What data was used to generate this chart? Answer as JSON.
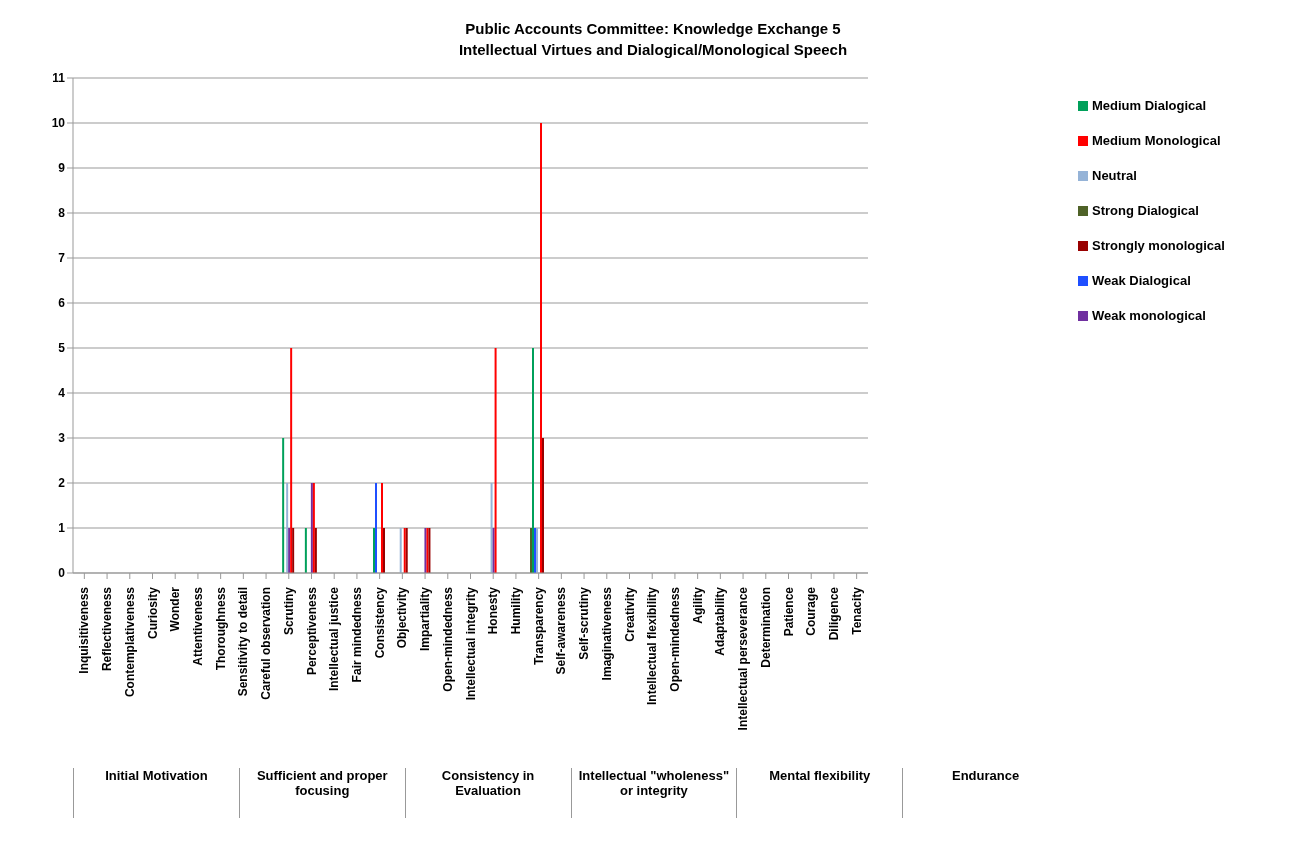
{
  "chart_data": {
    "type": "bar",
    "title": "Public Accounts Committee: Knowledge Exchange 5",
    "subtitle": "Intellectual Virtues and Dialogical/Monological Speech",
    "categories": [
      "Inquisitiveness",
      "Reflectiveness",
      "Contemplativeness",
      "Curiosity",
      "Wonder",
      "Attentiveness",
      "Thoroughness",
      "Sensitivity to detail",
      "Careful observation",
      "Scrutiny",
      "Perceptiveness",
      "Intellectual justice",
      "Fair mindedness",
      "Consistency",
      "Objectivity",
      "Impartiality",
      "Open-mindedness",
      "Intellectual integrity",
      "Honesty",
      "Humility",
      "Transparency",
      "Self-awareness",
      "Self-scrutiny",
      "Imaginativeness",
      "Creativity",
      "Intellectual flexibility",
      "Open-mindedness",
      "Agility",
      "Adaptability",
      "Intellectual perseverance",
      "Determination",
      "Patience",
      "Courage",
      "Diligence",
      "Tenacity"
    ],
    "series": [
      {
        "name": "Strong Dialogical",
        "color": "#4f6228",
        "values": [
          null,
          null,
          null,
          null,
          null,
          null,
          null,
          null,
          null,
          null,
          null,
          null,
          null,
          null,
          null,
          null,
          null,
          null,
          null,
          null,
          1,
          null,
          null,
          null,
          null,
          null,
          null,
          null,
          null,
          null,
          null,
          null,
          null,
          null,
          null
        ]
      },
      {
        "name": "Medium Dialogical",
        "color": "#00a05a",
        "values": [
          null,
          null,
          null,
          null,
          null,
          null,
          null,
          null,
          null,
          3,
          1,
          null,
          null,
          1,
          null,
          null,
          null,
          null,
          null,
          null,
          5,
          null,
          null,
          null,
          null,
          null,
          null,
          null,
          null,
          null,
          null,
          null,
          null,
          null,
          null
        ]
      },
      {
        "name": "Weak Dialogical",
        "color": "#1f4fff",
        "values": [
          null,
          null,
          null,
          null,
          null,
          null,
          null,
          null,
          null,
          null,
          null,
          null,
          null,
          2,
          null,
          null,
          null,
          null,
          null,
          null,
          1,
          null,
          null,
          null,
          null,
          null,
          null,
          null,
          null,
          null,
          null,
          null,
          null,
          null,
          null
        ]
      },
      {
        "name": "Neutral",
        "color": "#95b3d7",
        "values": [
          null,
          null,
          null,
          null,
          null,
          null,
          null,
          null,
          null,
          2,
          null,
          null,
          null,
          null,
          1,
          null,
          null,
          null,
          2,
          null,
          1,
          null,
          null,
          null,
          null,
          null,
          null,
          null,
          null,
          null,
          null,
          null,
          null,
          null,
          null
        ]
      },
      {
        "name": "Weak monological",
        "color": "#7030a0",
        "values": [
          null,
          null,
          null,
          null,
          null,
          null,
          null,
          null,
          null,
          1,
          2,
          null,
          null,
          null,
          null,
          1,
          null,
          null,
          1,
          null,
          null,
          null,
          null,
          null,
          null,
          null,
          null,
          null,
          null,
          null,
          null,
          null,
          null,
          null,
          null
        ]
      },
      {
        "name": "Medium Monological",
        "color": "#ff0000",
        "values": [
          null,
          null,
          null,
          null,
          null,
          null,
          null,
          null,
          null,
          5,
          2,
          null,
          null,
          2,
          1,
          1,
          null,
          null,
          5,
          null,
          10,
          null,
          null,
          null,
          null,
          null,
          null,
          null,
          null,
          null,
          null,
          null,
          null,
          null,
          null
        ]
      },
      {
        "name": "Strongly monological",
        "color": "#990000",
        "values": [
          null,
          null,
          null,
          null,
          null,
          null,
          null,
          null,
          null,
          1,
          1,
          null,
          null,
          1,
          1,
          1,
          null,
          null,
          null,
          null,
          3,
          null,
          null,
          null,
          null,
          null,
          null,
          null,
          null,
          null,
          null,
          null,
          null,
          null,
          null
        ]
      }
    ],
    "annotations": [
      "Initial Motivation",
      "Sufficient and proper focusing",
      "Consistency in Evaluation",
      "Intellectual \"wholeness\" or integrity",
      "Mental flexibility",
      "Endurance"
    ],
    "ylim": [
      0,
      11
    ],
    "yticks": [
      0,
      1,
      2,
      3,
      4,
      5,
      6,
      7,
      8,
      9,
      10,
      11
    ],
    "grid": "y",
    "legend": "right"
  }
}
